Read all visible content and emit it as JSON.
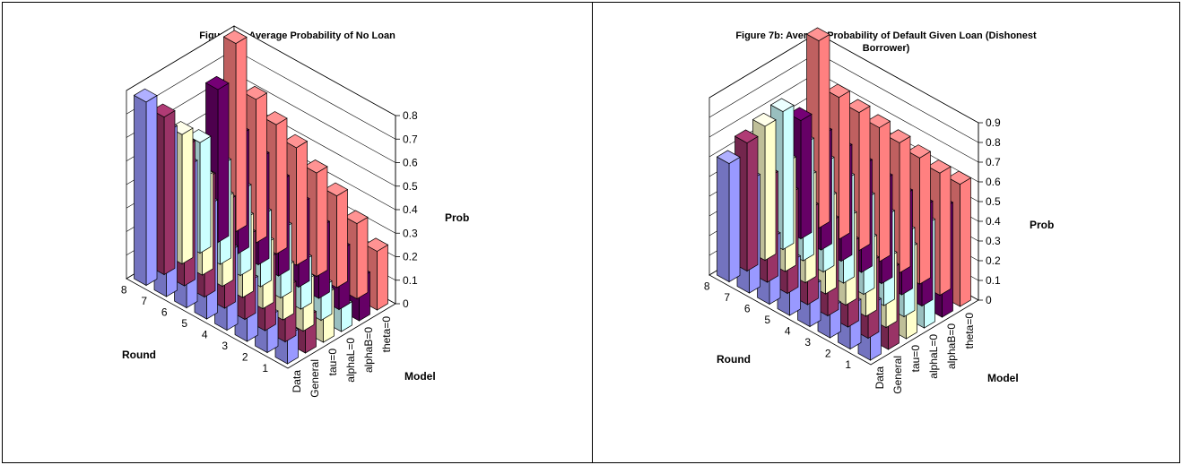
{
  "chart_data": [
    {
      "type": "bar3d",
      "title": "Figure 7a: Average Probability of No Loan",
      "xlabel": "Round",
      "ylabel": "Model",
      "zlabel": "Prob",
      "rounds": [
        "8",
        "7",
        "6",
        "5",
        "4",
        "3",
        "2",
        "1"
      ],
      "models": [
        "Data",
        "General",
        "tau=0",
        "alphaL=0",
        "alphaB=0",
        "theta=0"
      ],
      "zlim": [
        0,
        0.8
      ],
      "zticks": [
        "0",
        "0.1",
        "0.2",
        "0.3",
        "0.4",
        "0.5",
        "0.6",
        "0.7",
        "0.8"
      ],
      "series": [
        {
          "name": "Data",
          "values": [
            0.78,
            0.7,
            0.6,
            0.48,
            0.33,
            0.25,
            0.15,
            0.12
          ]
        },
        {
          "name": "General",
          "values": [
            0.67,
            0.59,
            0.5,
            0.45,
            0.35,
            0.3,
            0.23,
            0.15
          ]
        },
        {
          "name": "tau=0",
          "values": [
            0.55,
            0.41,
            0.37,
            0.33,
            0.27,
            0.22,
            0.21,
            0.2
          ]
        },
        {
          "name": "alphaL=0",
          "values": [
            0.47,
            0.42,
            0.36,
            0.3,
            0.29,
            0.2,
            0.14,
            0.1
          ]
        },
        {
          "name": "alphaB=0",
          "values": [
            0.65,
            0.5,
            0.45,
            0.4,
            0.35,
            0.3,
            0.25,
            0.18
          ]
        },
        {
          "name": "theta=0",
          "values": [
            0.8,
            0.61,
            0.55,
            0.5,
            0.44,
            0.39,
            0.32,
            0.25
          ]
        }
      ],
      "colors": [
        "#9999ff",
        "#993366",
        "#ffffcc",
        "#ccffff",
        "#660066",
        "#ff8080"
      ]
    },
    {
      "type": "bar3d",
      "title": "Figure 7b: Average Probability of Default Given Loan (Dishonest\nBorrower)",
      "xlabel": "Round",
      "ylabel": "Model",
      "zlabel": "Prob",
      "rounds": [
        "8",
        "7",
        "6",
        "5",
        "4",
        "3",
        "2",
        "1"
      ],
      "models": [
        "Data",
        "General",
        "tau=0",
        "alphaL=0",
        "alphaB=0",
        "theta=0"
      ],
      "zlim": [
        0,
        0.9
      ],
      "zticks": [
        "0",
        "0.1",
        "0.2",
        "0.3",
        "0.4",
        "0.5",
        "0.6",
        "0.7",
        "0.8",
        "0.9"
      ],
      "series": [
        {
          "name": "Data",
          "values": [
            0.6,
            0.57,
            0.33,
            0.27,
            0.2,
            0.15,
            0.22,
            0.28
          ]
        },
        {
          "name": "General",
          "values": [
            0.65,
            0.53,
            0.5,
            0.48,
            0.47,
            0.42,
            0.38,
            0.4
          ]
        },
        {
          "name": "tau=0",
          "values": [
            0.68,
            0.55,
            0.53,
            0.48,
            0.44,
            0.38,
            0.35,
            0.45
          ]
        },
        {
          "name": "alphaL=0",
          "values": [
            0.7,
            0.59,
            0.55,
            0.52,
            0.48,
            0.45,
            0.42,
            0.52
          ]
        },
        {
          "name": "alphaB=0",
          "values": [
            0.6,
            0.58,
            0.56,
            0.54,
            0.52,
            0.5,
            0.5,
            0.55
          ]
        },
        {
          "name": "theta=0",
          "values": [
            0.95,
            0.72,
            0.7,
            0.68,
            0.66,
            0.64,
            0.62,
            0.62
          ]
        }
      ],
      "colors": [
        "#9999ff",
        "#993366",
        "#ffffcc",
        "#ccffff",
        "#660066",
        "#ff8080"
      ]
    }
  ]
}
